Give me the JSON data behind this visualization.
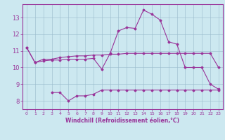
{
  "xlabel": "Windchill (Refroidissement éolien,°C)",
  "bg_color": "#cce8f0",
  "line_color": "#993399",
  "xlim": [
    -0.5,
    23.5
  ],
  "ylim": [
    7.5,
    13.8
  ],
  "yticks": [
    8,
    9,
    10,
    11,
    12,
    13
  ],
  "xticks": [
    0,
    1,
    2,
    3,
    4,
    5,
    6,
    7,
    8,
    9,
    10,
    11,
    12,
    13,
    14,
    15,
    16,
    17,
    18,
    19,
    20,
    21,
    22,
    23
  ],
  "line1": [
    11.2,
    10.3,
    10.5,
    10.5,
    10.6,
    10.65,
    10.7,
    10.7,
    10.75,
    10.75,
    10.8,
    10.8,
    10.85,
    10.85,
    10.85,
    10.85,
    10.85,
    10.85,
    10.85,
    10.85,
    10.85,
    10.85,
    10.85,
    10.0
  ],
  "line2": [
    11.2,
    10.3,
    10.4,
    10.45,
    10.45,
    10.5,
    10.5,
    10.5,
    10.55,
    9.9,
    10.85,
    12.2,
    12.4,
    12.35,
    13.45,
    13.2,
    12.85,
    11.55,
    11.4,
    10.0,
    10.0,
    10.0,
    9.0,
    8.7
  ],
  "line3": [
    null,
    null,
    null,
    8.5,
    8.5,
    8.0,
    8.3,
    8.3,
    8.4,
    8.65,
    8.65,
    8.65,
    8.65,
    8.65,
    8.65,
    8.65,
    8.65,
    8.65,
    8.65,
    8.65,
    8.65,
    8.65,
    8.65,
    8.65
  ]
}
